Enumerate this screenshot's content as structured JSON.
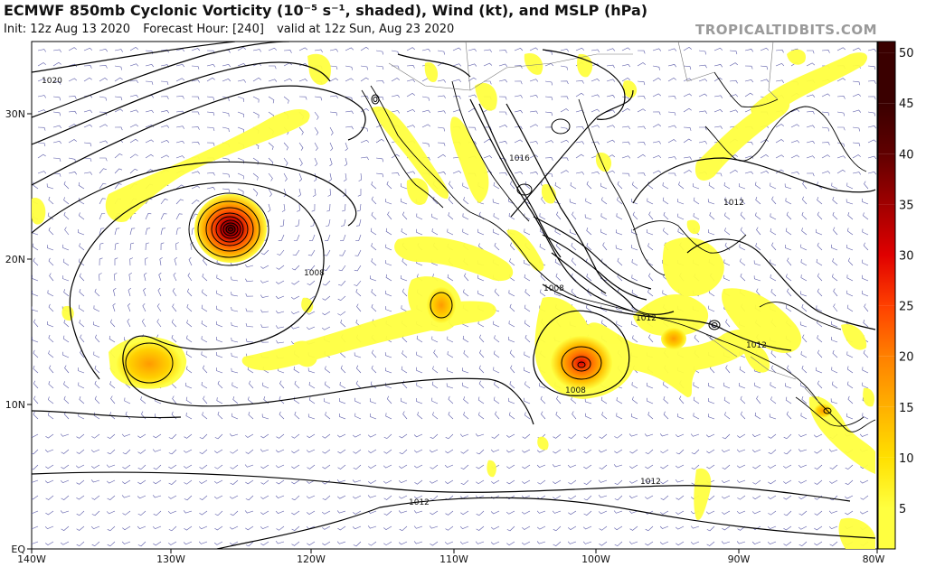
{
  "header": {
    "title": "ECMWF 850mb Cyclonic Vorticity (10⁻⁵ s⁻¹, shaded), Wind (kt), and MSLP (hPa)",
    "init": "Init: 12z Aug 13 2020",
    "forecast_hour": "Forecast Hour: [240]",
    "valid": "valid at 12z Sun, Aug 23 2020",
    "brand": "TROPICALTIDBITS.COM"
  },
  "map": {
    "lon_labels": [
      "140W",
      "130W",
      "120W",
      "110W",
      "100W",
      "90W",
      "80W"
    ],
    "lat_labels": [
      "EQ",
      "10N",
      "20N",
      "30N"
    ],
    "contour_labels": [
      "1020",
      "1016",
      "1012",
      "1012",
      "1012",
      "1012",
      "1012",
      "1008",
      "1008",
      "1008",
      "1012"
    ]
  },
  "colorbar": {
    "ticks": [
      "5",
      "10",
      "15",
      "20",
      "25",
      "30",
      "35",
      "40",
      "45",
      "50"
    ],
    "colors": [
      "#ffff40",
      "#ffe000",
      "#ffb000",
      "#ff8000",
      "#ff4000",
      "#e00000",
      "#a00000",
      "#600000",
      "#3a0000"
    ]
  }
}
